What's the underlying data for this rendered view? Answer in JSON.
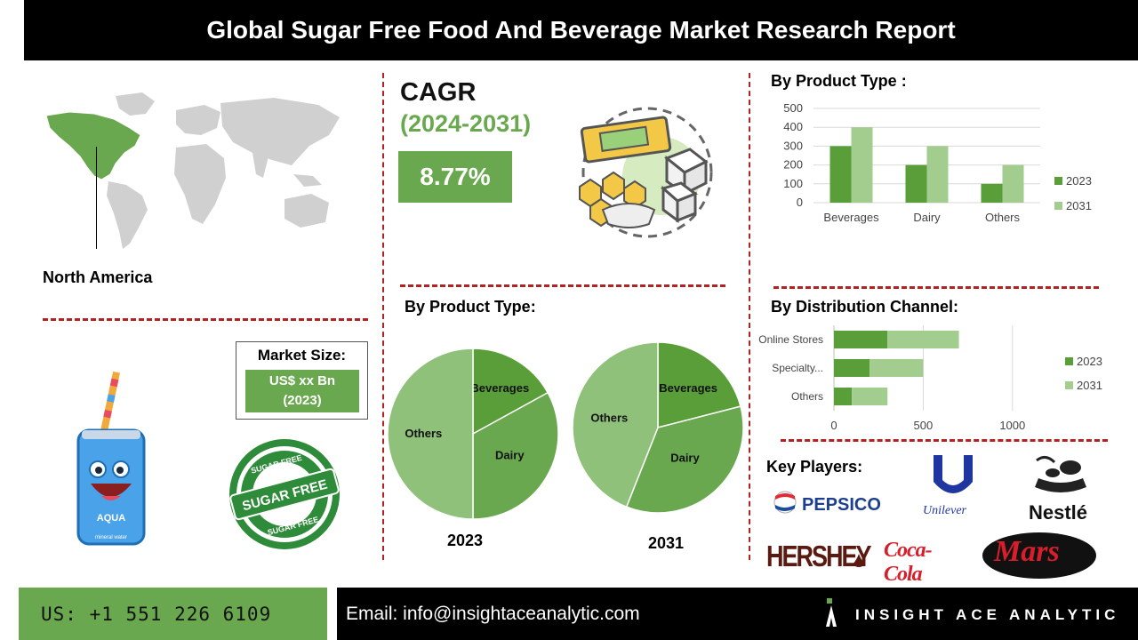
{
  "header": {
    "title": "Global Sugar Free Food And Beverage Market Research Report"
  },
  "region": {
    "label": "North America"
  },
  "cagr": {
    "label": "CAGR",
    "period": "(2024-2031)",
    "value": "8.77%"
  },
  "market_size": {
    "title": "Market Size:",
    "value_line1": "US$ xx Bn",
    "value_line2": "(2023)"
  },
  "product_type_bar": {
    "title": "By Product Type :"
  },
  "product_type_pie": {
    "title": "By Product Type:"
  },
  "distribution": {
    "title": "By Distribution Channel:"
  },
  "key_players": {
    "title": "Key Players:",
    "logos": [
      "PEPSICO",
      "Unilever",
      "Nestlé",
      "HERSHEY",
      "Coca-Cola",
      "Mars"
    ]
  },
  "illustrations": {
    "can_label": "AQUA",
    "can_sub": "mineral water",
    "stamp_main": "SUGAR FREE",
    "stamp_ring": "SUGAR FREE"
  },
  "footer": {
    "phone": "US: +1 551 226 6109",
    "email": "Email: info@insightaceanalytic.com",
    "brand": "INSIGHT ACE ANALYTIC"
  },
  "colors": {
    "dark_green": "#5a9e3a",
    "light_green": "#a3cc8f",
    "mid_green": "#6aa84f",
    "pale_green": "#8fc17a",
    "divider_red": "#b22222"
  },
  "chart_data": [
    {
      "type": "bar",
      "title": "By Product Type :",
      "categories": [
        "Beverages",
        "Dairy",
        "Others"
      ],
      "series": [
        {
          "name": "2023",
          "values": [
            300,
            200,
            100
          ]
        },
        {
          "name": "2031",
          "values": [
            400,
            300,
            200
          ]
        }
      ],
      "ylim": [
        0,
        500
      ],
      "yticks": [
        0,
        100,
        200,
        300,
        400,
        500
      ],
      "grid": true,
      "legend": "right"
    },
    {
      "type": "pie",
      "title": "2023",
      "labels": [
        "Beverages",
        "Dairy",
        "Others"
      ],
      "values": [
        17,
        33,
        50
      ]
    },
    {
      "type": "pie",
      "title": "2031",
      "labels": [
        "Beverages",
        "Dairy",
        "Others"
      ],
      "values": [
        21,
        35,
        44
      ]
    },
    {
      "type": "bar",
      "orientation": "horizontal",
      "title": "By Distribution Channel:",
      "categories": [
        "Online Stores",
        "Specialty...",
        "Others"
      ],
      "series": [
        {
          "name": "2023",
          "values": [
            300,
            200,
            100
          ]
        },
        {
          "name": "2031",
          "values": [
            400,
            300,
            200
          ]
        }
      ],
      "stacked": true,
      "xlim": [
        0,
        1250
      ],
      "xticks": [
        0,
        500,
        1000
      ],
      "grid": true,
      "legend": "right"
    }
  ]
}
